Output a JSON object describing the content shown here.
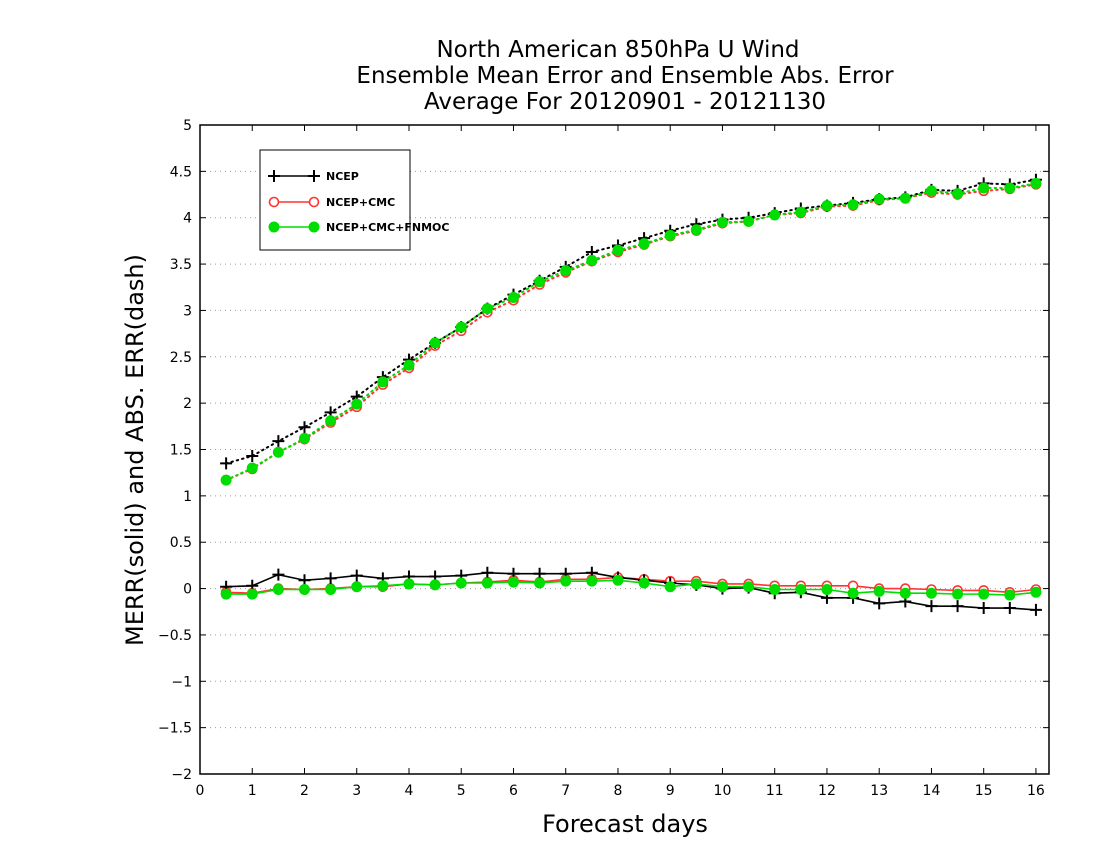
{
  "chart_data": {
    "type": "line",
    "title_lines": [
      "North American 850hPa U Wind",
      "Ensemble Mean Error and Ensemble Abs. Error",
      "Average For 20120901 - 20121130"
    ],
    "xlabel": "Forecast days",
    "ylabel": "MERR(solid) and ABS. ERR(dash)",
    "xlim": [
      0,
      16.25
    ],
    "ylim": [
      -2,
      5
    ],
    "x_ticks": [
      "0",
      "1",
      "2",
      "3",
      "4",
      "5",
      "6",
      "7",
      "8",
      "9",
      "10",
      "11",
      "12",
      "13",
      "14",
      "15",
      "16"
    ],
    "y_ticks": [
      "5",
      "4.5",
      "4",
      "3.5",
      "3",
      "2.5",
      "2",
      "1.5",
      "1",
      "0.5",
      "0",
      "−0.5",
      "−1",
      "−1.5",
      "−2"
    ],
    "grid": "horizontal dotted",
    "legend_placement": "top-left",
    "x": [
      0.5,
      1,
      1.5,
      2,
      2.5,
      3,
      3.5,
      4,
      4.5,
      5,
      5.5,
      6,
      6.5,
      7,
      7.5,
      8,
      8.5,
      9,
      9.5,
      10,
      10.5,
      11,
      11.5,
      12,
      12.5,
      13,
      13.5,
      14,
      14.5,
      15,
      15.5,
      16
    ],
    "series": [
      {
        "name": "NCEP",
        "color": "#000000",
        "marker": "plus",
        "merr": [
          0.02,
          0.03,
          0.15,
          0.09,
          0.11,
          0.14,
          0.11,
          0.13,
          0.13,
          0.14,
          0.17,
          0.16,
          0.16,
          0.16,
          0.17,
          0.12,
          0.09,
          0.06,
          0.04,
          0.0,
          0.01,
          -0.05,
          -0.04,
          -0.1,
          -0.1,
          -0.16,
          -0.14,
          -0.19,
          -0.19,
          -0.21,
          -0.21,
          -0.23
        ],
        "abs_err": [
          1.35,
          1.43,
          1.59,
          1.74,
          1.9,
          2.07,
          2.28,
          2.47,
          2.65,
          2.82,
          3.02,
          3.17,
          3.32,
          3.47,
          3.63,
          3.7,
          3.78,
          3.86,
          3.93,
          3.98,
          4.0,
          4.05,
          4.1,
          4.13,
          4.16,
          4.2,
          4.22,
          4.3,
          4.29,
          4.37,
          4.36,
          4.41
        ]
      },
      {
        "name": "NCEP+CMC",
        "color": "#ff3333",
        "marker": "open-circle",
        "merr": [
          -0.04,
          -0.05,
          0.0,
          -0.01,
          0.0,
          0.02,
          0.02,
          0.05,
          0.04,
          0.06,
          0.07,
          0.09,
          0.07,
          0.1,
          0.1,
          0.12,
          0.1,
          0.08,
          0.08,
          0.05,
          0.05,
          0.03,
          0.03,
          0.03,
          0.03,
          0.0,
          0.0,
          -0.01,
          -0.02,
          -0.02,
          -0.04,
          -0.01
        ],
        "abs_err": [
          1.17,
          1.29,
          1.47,
          1.61,
          1.79,
          1.96,
          2.2,
          2.38,
          2.62,
          2.78,
          2.98,
          3.11,
          3.28,
          3.41,
          3.53,
          3.63,
          3.71,
          3.8,
          3.86,
          3.94,
          3.96,
          4.03,
          4.05,
          4.12,
          4.13,
          4.19,
          4.21,
          4.27,
          4.25,
          4.29,
          4.31,
          4.36
        ]
      },
      {
        "name": "NCEP+CMC+FNMOC",
        "color": "#00dd00",
        "marker": "filled-circle",
        "merr": [
          -0.06,
          -0.06,
          -0.01,
          -0.01,
          -0.01,
          0.02,
          0.03,
          0.05,
          0.04,
          0.06,
          0.06,
          0.07,
          0.06,
          0.08,
          0.08,
          0.09,
          0.06,
          0.02,
          0.05,
          0.02,
          0.02,
          -0.01,
          -0.01,
          -0.01,
          -0.05,
          -0.03,
          -0.05,
          -0.05,
          -0.06,
          -0.06,
          -0.07,
          -0.04
        ],
        "abs_err": [
          1.17,
          1.3,
          1.47,
          1.62,
          1.81,
          1.99,
          2.23,
          2.41,
          2.65,
          2.82,
          3.02,
          3.14,
          3.31,
          3.43,
          3.54,
          3.65,
          3.72,
          3.81,
          3.87,
          3.95,
          3.96,
          4.03,
          4.06,
          4.13,
          4.14,
          4.2,
          4.21,
          4.29,
          4.26,
          4.32,
          4.32,
          4.37
        ]
      }
    ]
  }
}
